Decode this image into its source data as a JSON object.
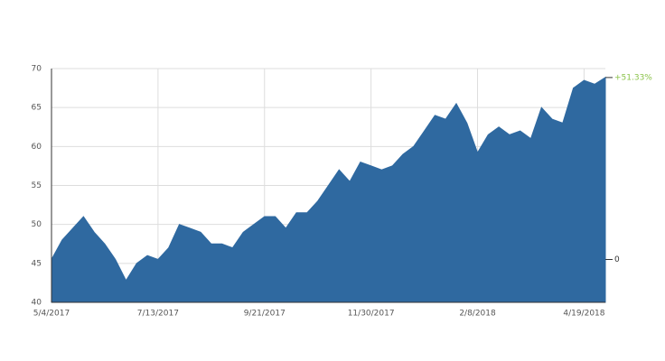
{
  "chart_data": {
    "type": "area",
    "x": [
      "5/4/2017",
      "5/11/2017",
      "5/18/2017",
      "5/25/2017",
      "6/1/2017",
      "6/8/2017",
      "6/15/2017",
      "6/22/2017",
      "6/29/2017",
      "7/6/2017",
      "7/13/2017",
      "7/20/2017",
      "7/27/2017",
      "8/3/2017",
      "8/10/2017",
      "8/17/2017",
      "8/24/2017",
      "8/31/2017",
      "9/7/2017",
      "9/14/2017",
      "9/21/2017",
      "9/28/2017",
      "10/5/2017",
      "10/12/2017",
      "10/19/2017",
      "10/26/2017",
      "11/2/2017",
      "11/9/2017",
      "11/16/2017",
      "11/23/2017",
      "11/30/2017",
      "12/7/2017",
      "12/14/2017",
      "12/21/2017",
      "12/28/2017",
      "1/4/2018",
      "1/11/2018",
      "1/18/2018",
      "1/25/2018",
      "2/1/2018",
      "2/8/2018",
      "2/15/2018",
      "2/22/2018",
      "3/1/2018",
      "3/8/2018",
      "3/15/2018",
      "3/22/2018",
      "3/29/2018",
      "4/5/2018",
      "4/12/2018",
      "4/19/2018",
      "4/26/2018",
      "5/3/2018"
    ],
    "values": [
      45.5,
      48,
      49.5,
      51,
      49,
      47.5,
      45.5,
      42.8,
      45,
      46,
      45.5,
      47,
      50,
      49.5,
      49,
      47.5,
      47.5,
      47,
      49,
      50,
      51,
      51,
      49.5,
      51.5,
      51.5,
      53,
      55,
      57,
      55.5,
      58,
      57.5,
      57,
      57.5,
      59,
      60,
      62,
      64,
      63.5,
      65.5,
      63,
      59.2,
      61.5,
      62.5,
      61.5,
      62,
      61,
      65,
      63.5,
      63,
      67.5,
      68.5,
      68,
      68.86
    ],
    "color": "#2f69a0",
    "ylim": [
      40,
      70
    ],
    "yticks": [
      40,
      45,
      50,
      55,
      60,
      65,
      70
    ],
    "xticks": [
      "5/4/2017",
      "7/13/2017",
      "9/21/2017",
      "11/30/2017",
      "2/8/2018",
      "4/19/2018"
    ],
    "y2lim": [
      -12.09,
      53.85
    ],
    "y2ticks": [
      0,
      {
        "value": 51.33,
        "label": "+51.33%"
      }
    ],
    "y2_label_colors": [
      "#333333",
      "#8bc34a"
    ],
    "grid": true
  }
}
